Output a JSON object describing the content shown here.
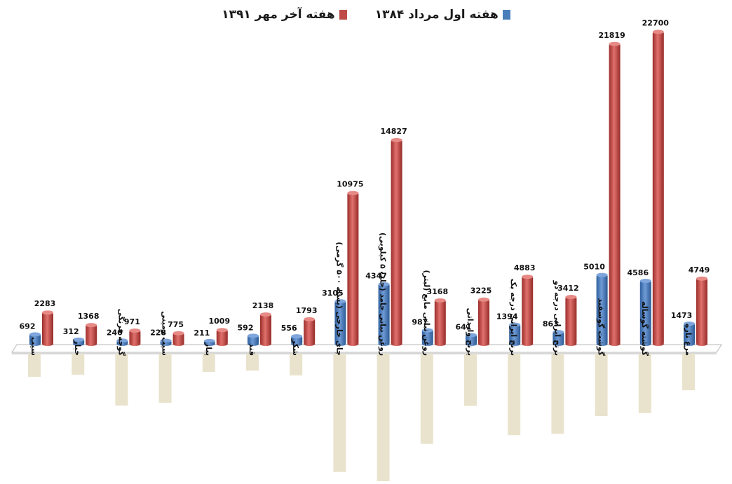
{
  "legend": {
    "series_1": "هفته اول مرداد ۱۳۸۴",
    "series_2": "هفته آخر مهر ۱۳۹۱"
  },
  "colors": {
    "series_1": "#4a7ebb",
    "series_2": "#be4b48",
    "label_box": "#e9e3cd"
  },
  "chart_data": {
    "type": "bar",
    "title": "",
    "xlabel": "",
    "ylabel": "",
    "ylim": [
      0,
      24000
    ],
    "grid": false,
    "legend_position": "top",
    "categories": [
      "سیب",
      "خیار",
      "گوجه فرنگی",
      "سیب زمینی",
      "پیاز",
      "قند",
      "شکر",
      "چای خارجی (بسته ۵۰۰ گرمی)",
      "روغن نباتی جامد (حلب ۵ کیلویی)",
      "روغن نباتی مایع (لیتر)",
      "برنج وارداتی",
      "برنج ایرانی درجه یک",
      "برنج ایرانی درجه دو",
      "گوشت گوسفند",
      "گوشته گوساله",
      "مرغ تازه"
    ],
    "series": [
      {
        "name": "هفته اول مرداد ۱۳۸۴",
        "values": [
          692,
          312,
          240,
          228,
          211,
          592,
          556,
          3105,
          4347,
          987,
          641,
          1394,
          863,
          5010,
          4586,
          1473
        ]
      },
      {
        "name": "هفته آخر مهر ۱۳۹۱",
        "values": [
          2283,
          1368,
          971,
          775,
          1009,
          2138,
          1793,
          10975,
          14827,
          3168,
          3225,
          4883,
          3412,
          21819,
          22700,
          4749
        ]
      }
    ]
  }
}
